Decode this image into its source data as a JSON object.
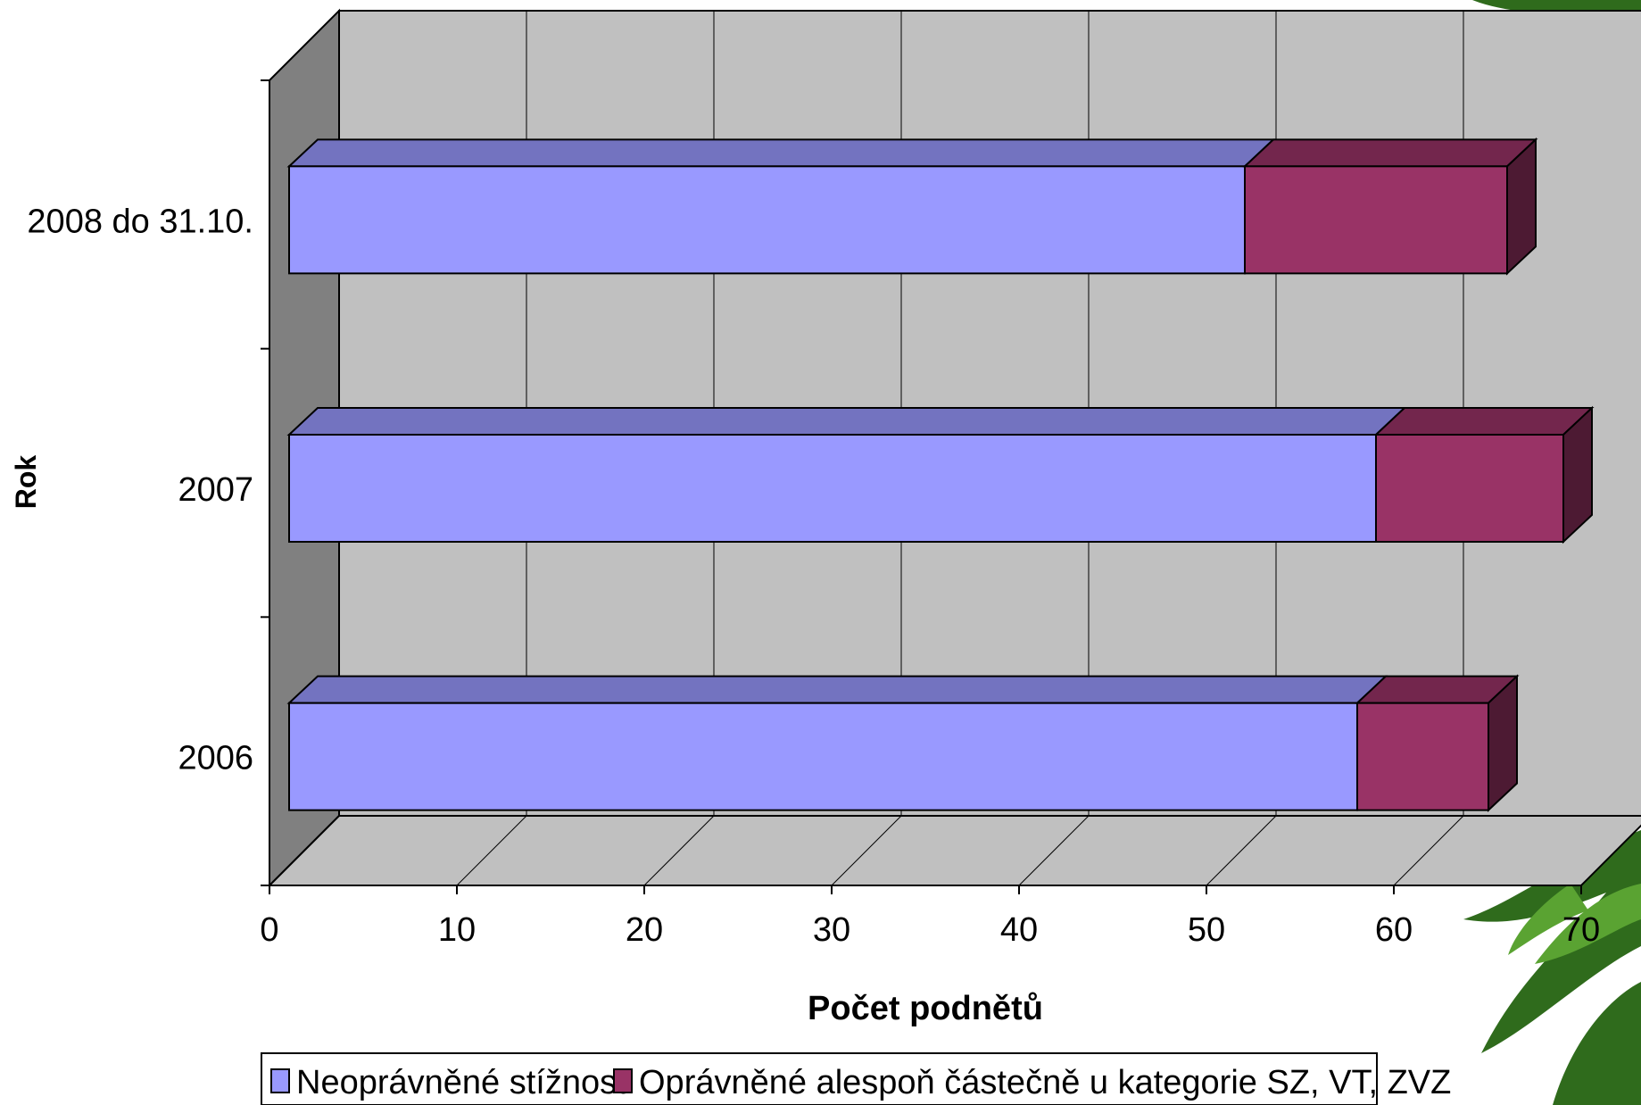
{
  "chart_data": {
    "type": "bar",
    "orientation": "horizontal",
    "stacked": true,
    "three_d": true,
    "categories": [
      "2006",
      "2007",
      "2008 do 31.10."
    ],
    "series": [
      {
        "name": "Neoprávněné stížnosti",
        "values": [
          57,
          58,
          51
        ]
      },
      {
        "name": "Oprávněné alespoň částečně u kategorie SZ, VT, ZVZ",
        "values": [
          7,
          10,
          14
        ]
      }
    ],
    "xlabel": "Počet podnětů",
    "ylabel": "Rok",
    "xlim": [
      0,
      70
    ],
    "xticks": [
      "0",
      "10",
      "20",
      "30",
      "40",
      "50",
      "60",
      "70"
    ],
    "grid": true,
    "legend_position": "bottom"
  },
  "colors": {
    "series_front": [
      "#9999ff",
      "#993366"
    ],
    "series_top": [
      "#7373c0",
      "#73264d"
    ],
    "series_side": [
      "#4d4d80",
      "#4d1a33"
    ],
    "wall": "#c0c0c0",
    "side_wall": "#808080",
    "floor": "#c0c0c0",
    "gridline": "#000000",
    "foliage_dark": "#2f6b1c",
    "foliage_light": "#5aa332"
  },
  "decoration": {
    "name": "foliage-image"
  }
}
